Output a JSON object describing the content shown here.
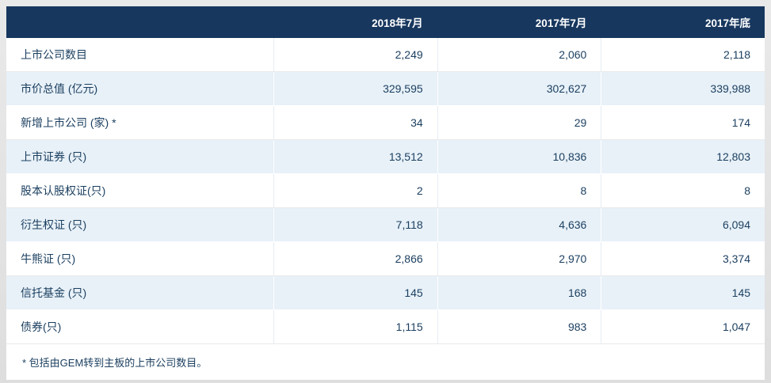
{
  "colors": {
    "header_bg": "#17375e",
    "row_alt_bg": "#e8f1f8",
    "text_navy": "#1a3e5f",
    "page_bg": "#e4e4e4"
  },
  "table": {
    "columns": [
      "",
      "2018年7月",
      "2017年7月",
      "2017年底"
    ],
    "rows": [
      {
        "label": "上市公司数目",
        "values": [
          "2,249",
          "2,060",
          "2,118"
        ]
      },
      {
        "label": "市价总值 (亿元)",
        "values": [
          "329,595",
          "302,627",
          "339,988"
        ]
      },
      {
        "label": "新增上市公司 (家) *",
        "values": [
          "34",
          "29",
          "174"
        ]
      },
      {
        "label": "上市证券 (只)",
        "values": [
          "13,512",
          "10,836",
          "12,803"
        ]
      },
      {
        "label": "股本认股权证(只)",
        "values": [
          "2",
          "8",
          "8"
        ]
      },
      {
        "label": "衍生权证 (只)",
        "values": [
          "7,118",
          "4,636",
          "6,094"
        ]
      },
      {
        "label": "牛熊证 (只)",
        "values": [
          "2,866",
          "2,970",
          "3,374"
        ]
      },
      {
        "label": "信托基金 (只)",
        "values": [
          "145",
          "168",
          "145"
        ]
      },
      {
        "label": "债券(只)",
        "values": [
          "1,115",
          "983",
          "1,047"
        ]
      }
    ],
    "footnote": "* 包括由GEM转到主板的上市公司数目。"
  },
  "chart_data": {
    "type": "table",
    "title": "",
    "columns": [
      "",
      "2018年7月",
      "2017年7月",
      "2017年底"
    ],
    "rows": [
      [
        "上市公司数目",
        2249,
        2060,
        2118
      ],
      [
        "市价总值 (亿元)",
        329595,
        302627,
        339988
      ],
      [
        "新增上市公司 (家) *",
        34,
        29,
        174
      ],
      [
        "上市证券 (只)",
        13512,
        10836,
        12803
      ],
      [
        "股本认股权证(只)",
        2,
        8,
        8
      ],
      [
        "衍生权证 (只)",
        7118,
        4636,
        6094
      ],
      [
        "牛熊证 (只)",
        2866,
        2970,
        3374
      ],
      [
        "信托基金 (只)",
        145,
        168,
        145
      ],
      [
        "债券(只)",
        1115,
        983,
        1047
      ]
    ],
    "annotations": [
      "* 包括由GEM转到主板的上市公司数目。"
    ]
  }
}
